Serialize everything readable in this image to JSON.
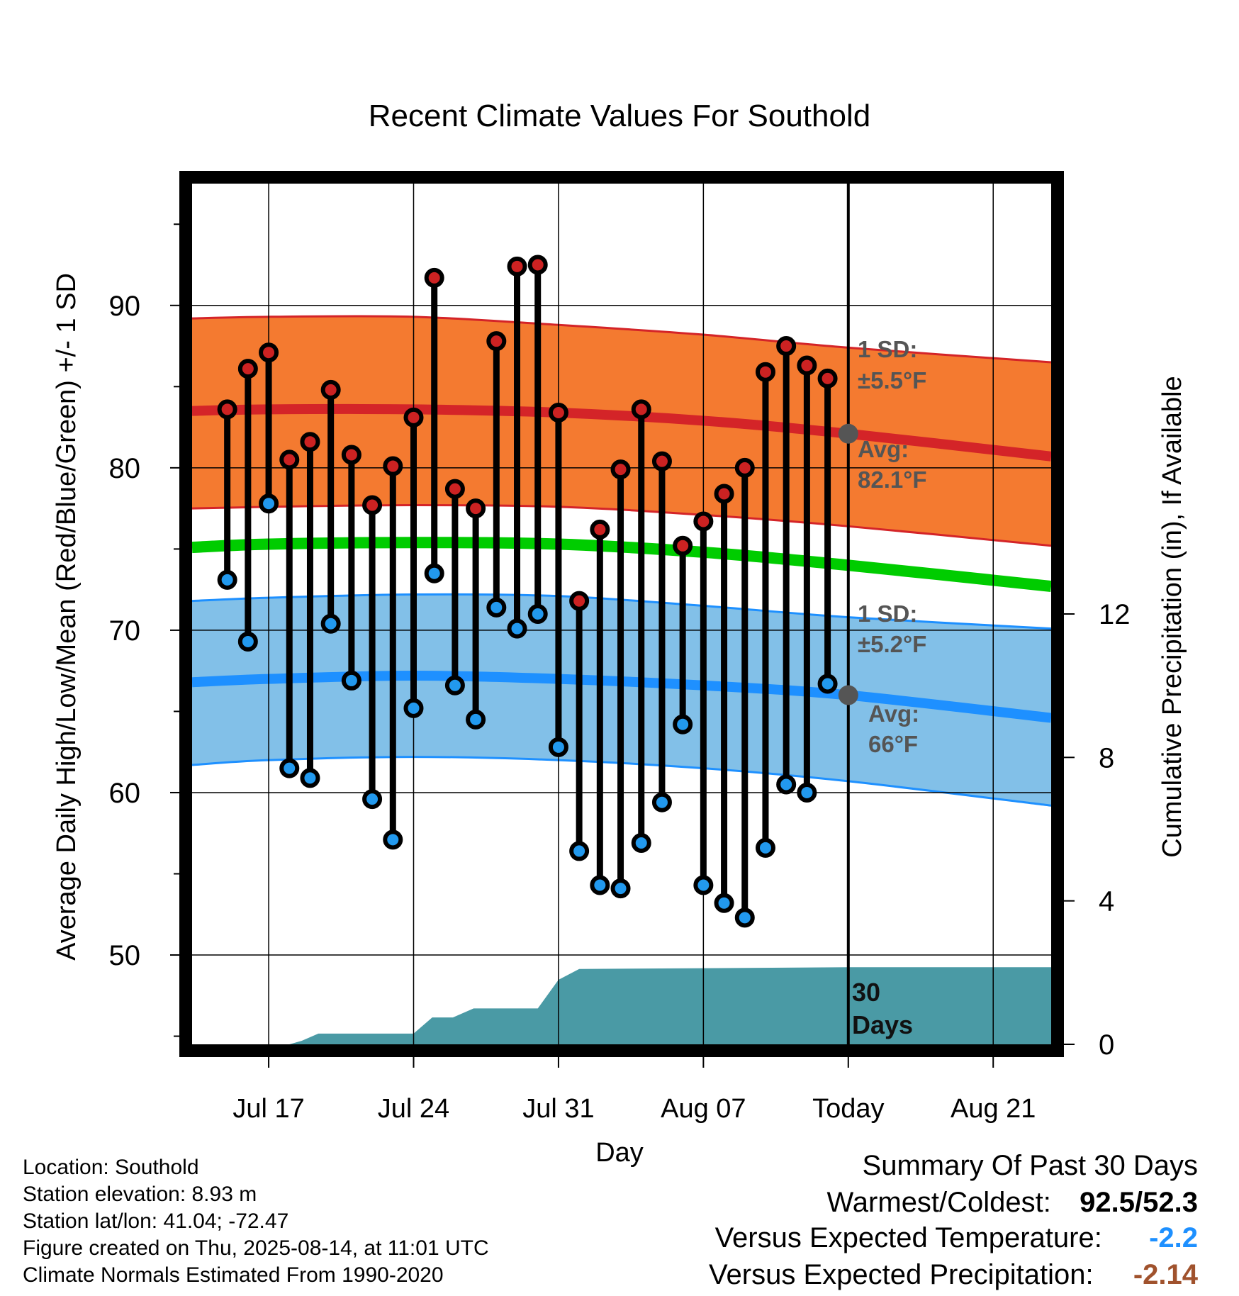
{
  "title": "Recent Climate Values For Southold",
  "y_axis_label": "Average Daily High/Low/Mean (Red/Blue/Green) +/- 1 SD",
  "y2_axis_label": "Cumulative Precipitation (in), If Available",
  "x_axis_label": "Day",
  "annotations": {
    "high_sd_line1": "1 SD:",
    "high_sd_line2": "±5.5°F",
    "high_avg_line1": "Avg:",
    "high_avg_line2": "82.1°F",
    "low_sd_line1": "1 SD:",
    "low_sd_line2": "±5.2°F",
    "low_avg_line1": "Avg:",
    "low_avg_line2": "66°F",
    "precip_line1": "30",
    "precip_line2": "Days"
  },
  "info": {
    "location": "Location: Southold",
    "elevation": "Station elevation: 8.93 m",
    "latlon": "Station lat/lon: 41.04; -72.47",
    "created": "Figure created on Thu, 2025-08-14, at 11:01 UTC",
    "normals": "Climate Normals Estimated From 1990-2020"
  },
  "summary": {
    "heading": "Summary Of Past 30 Days",
    "warm_cold_label": "Warmest/Coldest:",
    "warm_value": "92.5",
    "slash": "/",
    "cold_value": "52.3",
    "temp_label": "Versus Expected Temperature:",
    "temp_value": "-2.2",
    "precip_label": "Versus Expected Precipitation:",
    "precip_value": "-2.14"
  },
  "colors": {
    "high_band": "#f47a30",
    "high_line": "#d42428",
    "low_band": "#82c0e8",
    "low_line": "#1e90ff",
    "mean_line": "#00cc00",
    "precip_fill": "#4a9aa5",
    "high_dot": "#cc2222",
    "low_dot": "#2299ee",
    "annotation_text": "#555555",
    "temp_value": "#1e90ff",
    "precip_value": "#a0522d"
  },
  "chart_data": {
    "type": "line",
    "x_ticks": [
      "Jul 17",
      "Jul 24",
      "Jul 31",
      "Aug 07",
      "Today",
      "Aug 21"
    ],
    "ylim": [
      44.5,
      97.5
    ],
    "y_ticks": [
      50,
      60,
      70,
      80,
      90
    ],
    "y2_ticks": [
      0,
      4,
      8,
      12
    ],
    "y2lim": [
      0,
      24
    ],
    "xlim": [
      "Jul 13.3",
      "Aug 23.8"
    ],
    "today": "Aug 14",
    "daily": {
      "dates": [
        "Jul 15",
        "Jul 16",
        "Jul 17",
        "Jul 18",
        "Jul 19",
        "Jul 20",
        "Jul 21",
        "Jul 22",
        "Jul 23",
        "Jul 24",
        "Jul 25",
        "Jul 26",
        "Jul 27",
        "Jul 28",
        "Jul 29",
        "Jul 30",
        "Jul 31",
        "Aug 01",
        "Aug 02",
        "Aug 03",
        "Aug 04",
        "Aug 05",
        "Aug 06",
        "Aug 07",
        "Aug 08",
        "Aug 09",
        "Aug 10",
        "Aug 11",
        "Aug 12",
        "Aug 13"
      ],
      "high": [
        83.6,
        86.1,
        87.1,
        80.5,
        81.6,
        84.8,
        80.8,
        77.7,
        80.1,
        83.1,
        91.7,
        78.7,
        77.5,
        87.8,
        92.4,
        92.5,
        83.4,
        71.8,
        76.2,
        79.9,
        83.6,
        80.4,
        75.2,
        76.7,
        78.4,
        80.0,
        85.9,
        87.5,
        86.3,
        85.5
      ],
      "low": [
        73.1,
        69.3,
        77.8,
        61.5,
        60.9,
        70.4,
        66.9,
        59.6,
        57.1,
        65.2,
        73.5,
        66.6,
        64.5,
        71.4,
        70.1,
        71.0,
        62.8,
        56.4,
        54.3,
        54.1,
        56.9,
        59.4,
        64.2,
        54.3,
        53.2,
        52.3,
        56.6,
        60.5,
        60.0,
        66.7
      ]
    },
    "normals": {
      "dates": [
        "Jul 13.3",
        "Jul 17",
        "Jul 24",
        "Jul 31",
        "Aug 07",
        "Aug 14",
        "Aug 23.8"
      ],
      "avg_high": [
        83.5,
        83.6,
        83.6,
        83.4,
        82.9,
        82.1,
        80.7
      ],
      "high_sd_upper": [
        89.2,
        89.3,
        89.3,
        88.8,
        88.2,
        87.4,
        86.5
      ],
      "high_sd_lower": [
        77.5,
        77.6,
        77.7,
        77.6,
        77.1,
        76.4,
        75.2
      ],
      "mean": [
        75.1,
        75.3,
        75.4,
        75.3,
        74.8,
        74.0,
        72.7
      ],
      "avg_low": [
        66.8,
        67.0,
        67.2,
        67.0,
        66.6,
        66.0,
        64.6
      ],
      "low_sd_upper": [
        71.8,
        72.0,
        72.2,
        72.1,
        71.5,
        70.8,
        70.1
      ],
      "low_sd_lower": [
        61.7,
        62.0,
        62.2,
        62.0,
        61.5,
        60.7,
        59.2
      ]
    },
    "precip_cumulative": {
      "dates": [
        "Jul 13.3",
        "Jul 18",
        "Jul 18.6",
        "Jul 19.4",
        "Jul 24",
        "Jul 24.9",
        "Jul 25.9",
        "Jul 26.9",
        "Jul 28",
        "Jul 30",
        "Jul 31",
        "Aug 01",
        "Aug 14",
        "Aug 23.8"
      ],
      "values": [
        0,
        0,
        0.1,
        0.3,
        0.3,
        0.75,
        0.75,
        1.0,
        1.0,
        1.0,
        1.8,
        2.1,
        2.15,
        2.15
      ]
    }
  }
}
